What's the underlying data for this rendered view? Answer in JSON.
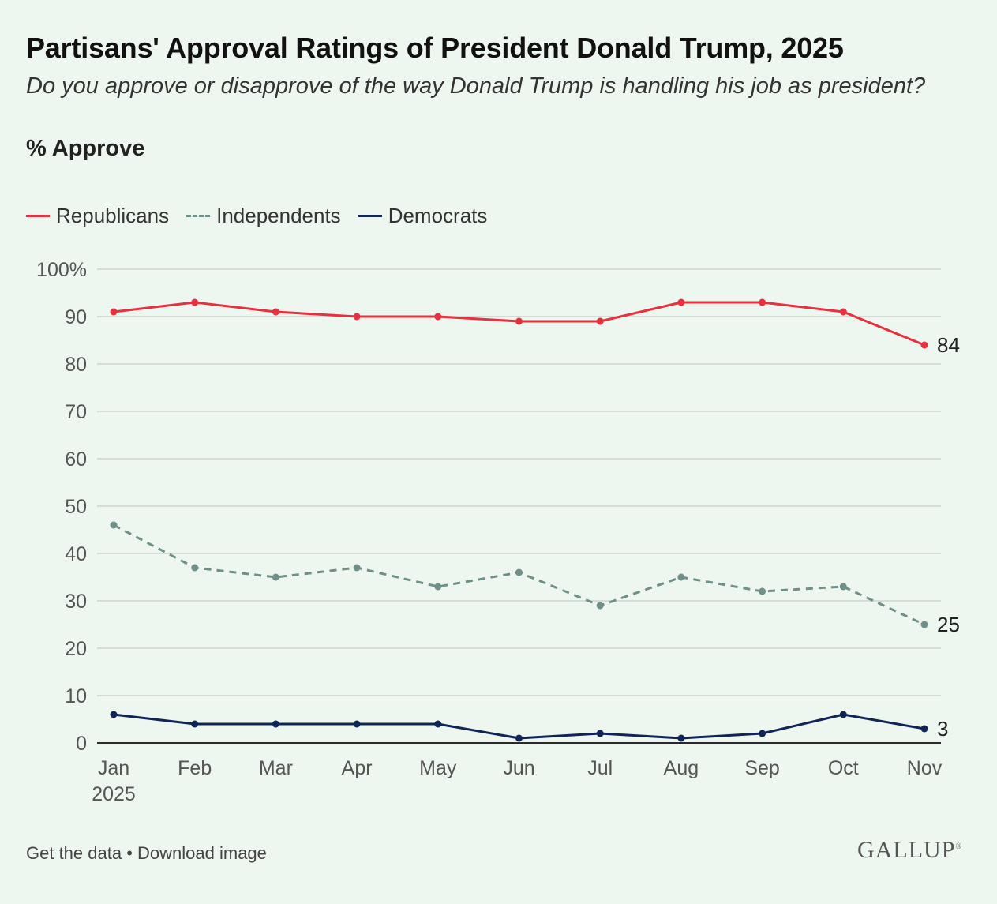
{
  "title": "Partisans' Approval Ratings of President Donald Trump, 2025",
  "subtitle": "Do you approve or disapprove of the way Donald Trump is handling his job as president?",
  "measure": "% Approve",
  "footer": {
    "get_data": "Get the data",
    "separator": " • ",
    "download": "Download image"
  },
  "logo": "GALLUP",
  "colors": {
    "republicans": "#e8303e",
    "independents": "#6f8f89",
    "democrats": "#0f2557",
    "grid": "#d5ddd6",
    "axis": "#2a2a2a",
    "background": "#eef7ef"
  },
  "chart_data": {
    "type": "line",
    "title": "Partisans' Approval Ratings of President Donald Trump, 2025",
    "categories": [
      "Jan",
      "Feb",
      "Mar",
      "Apr",
      "May",
      "Jun",
      "Jul",
      "Aug",
      "Sep",
      "Oct",
      "Nov"
    ],
    "year_label": "2025",
    "ylim": [
      0,
      100
    ],
    "yticks": [
      0,
      10,
      20,
      30,
      40,
      50,
      60,
      70,
      80,
      90,
      100
    ],
    "ytick_labels": [
      "0",
      "10",
      "20",
      "30",
      "40",
      "50",
      "60",
      "70",
      "80",
      "90",
      "100%"
    ],
    "grid": true,
    "legend_position": "top-left",
    "series": [
      {
        "name": "Republicans",
        "style": "solid",
        "values": [
          91,
          93,
          91,
          90,
          90,
          89,
          89,
          93,
          93,
          91,
          84
        ],
        "end_label": "84"
      },
      {
        "name": "Independents",
        "style": "dashed",
        "values": [
          46,
          37,
          35,
          37,
          33,
          36,
          29,
          35,
          32,
          33,
          25
        ],
        "end_label": "25"
      },
      {
        "name": "Democrats",
        "style": "solid",
        "values": [
          6,
          4,
          4,
          4,
          4,
          1,
          2,
          1,
          2,
          6,
          3
        ],
        "end_label": "3"
      }
    ]
  }
}
